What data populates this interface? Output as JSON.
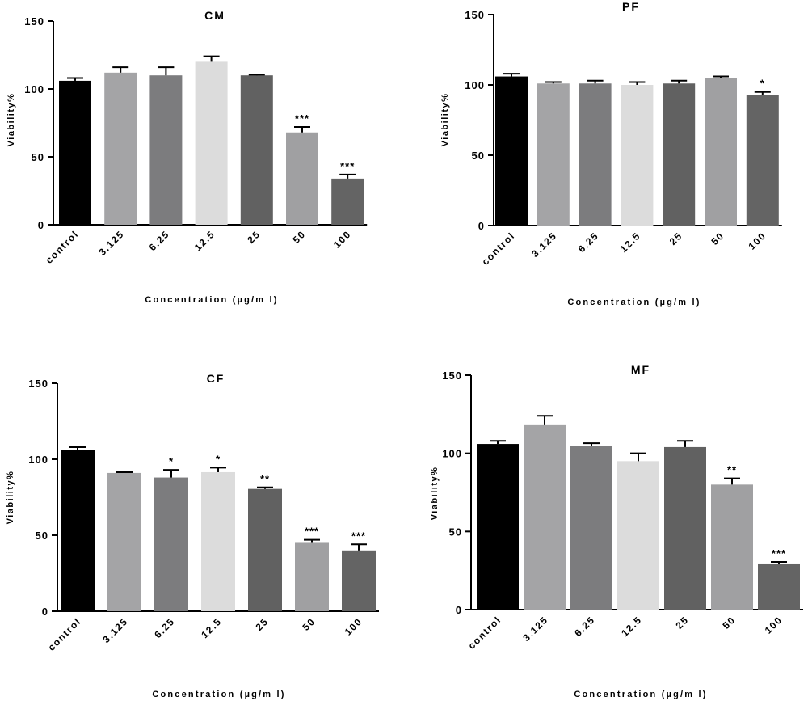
{
  "chart_data": [
    {
      "type": "bar",
      "title": "CM",
      "xlabel": "Concentration (µg/m l)",
      "ylabel": "Viability%",
      "ylim": [
        0,
        150
      ],
      "yticks": [
        0,
        50,
        100,
        150
      ],
      "categories": [
        "control",
        "3.125",
        "6.25",
        "12.5",
        "25",
        "50",
        "100"
      ],
      "values": [
        106,
        112,
        110,
        120,
        110,
        68,
        34
      ],
      "errors": [
        2,
        4,
        6,
        4,
        0.5,
        4,
        3
      ],
      "significance": [
        "",
        "",
        "",
        "",
        "",
        "***",
        "***"
      ],
      "colors": [
        "#000000",
        "#a4a4a6",
        "#7c7c7e",
        "#dcdcdc",
        "#616161",
        "#a0a0a2",
        "#646464"
      ]
    },
    {
      "type": "bar",
      "title": "PF",
      "xlabel": "Concentration (µg/m l)",
      "ylabel": "Viability%",
      "ylim": [
        0,
        150
      ],
      "yticks": [
        0,
        50,
        100,
        150
      ],
      "categories": [
        "control",
        "3.125",
        "6.25",
        "12.5",
        "25",
        "50",
        "100"
      ],
      "values": [
        106,
        101,
        101,
        100,
        101,
        105,
        93
      ],
      "errors": [
        2,
        1,
        2,
        2,
        2,
        1,
        2
      ],
      "significance": [
        "",
        "",
        "",
        "",
        "",
        "",
        "*"
      ],
      "colors": [
        "#000000",
        "#a4a4a6",
        "#7c7c7e",
        "#dcdcdc",
        "#616161",
        "#a0a0a2",
        "#646464"
      ]
    },
    {
      "type": "bar",
      "title": "CF",
      "xlabel": "Concentration (µg/m l)",
      "ylabel": "Viability%",
      "ylim": [
        0,
        150
      ],
      "yticks": [
        0,
        50,
        100,
        150
      ],
      "categories": [
        "control",
        "3.125",
        "6.25",
        "12.5",
        "25",
        "50",
        "100"
      ],
      "values": [
        106,
        91,
        88,
        91.5,
        80.5,
        45.5,
        40
      ],
      "errors": [
        2,
        0.5,
        5,
        3,
        1,
        1.5,
        4
      ],
      "significance": [
        "",
        "",
        "*",
        "*",
        "**",
        "***",
        "***"
      ],
      "colors": [
        "#000000",
        "#a4a4a6",
        "#7c7c7e",
        "#dcdcdc",
        "#616161",
        "#a0a0a2",
        "#646464"
      ]
    },
    {
      "type": "bar",
      "title": "MF",
      "xlabel": "Concentration (µg/m l)",
      "ylabel": "Viability%",
      "ylim": [
        0,
        150
      ],
      "yticks": [
        0,
        50,
        100,
        150
      ],
      "categories": [
        "control",
        "3.125",
        "6.25",
        "12.5",
        "25",
        "50",
        "100"
      ],
      "values": [
        106,
        118,
        104.5,
        95,
        104,
        80,
        29.5
      ],
      "errors": [
        2,
        6,
        2,
        5,
        4,
        4,
        1
      ],
      "significance": [
        "",
        "",
        "",
        "",
        "",
        "**",
        "***"
      ],
      "colors": [
        "#000000",
        "#a4a4a6",
        "#7c7c7e",
        "#dcdcdc",
        "#616161",
        "#a0a0a2",
        "#646464"
      ]
    }
  ]
}
